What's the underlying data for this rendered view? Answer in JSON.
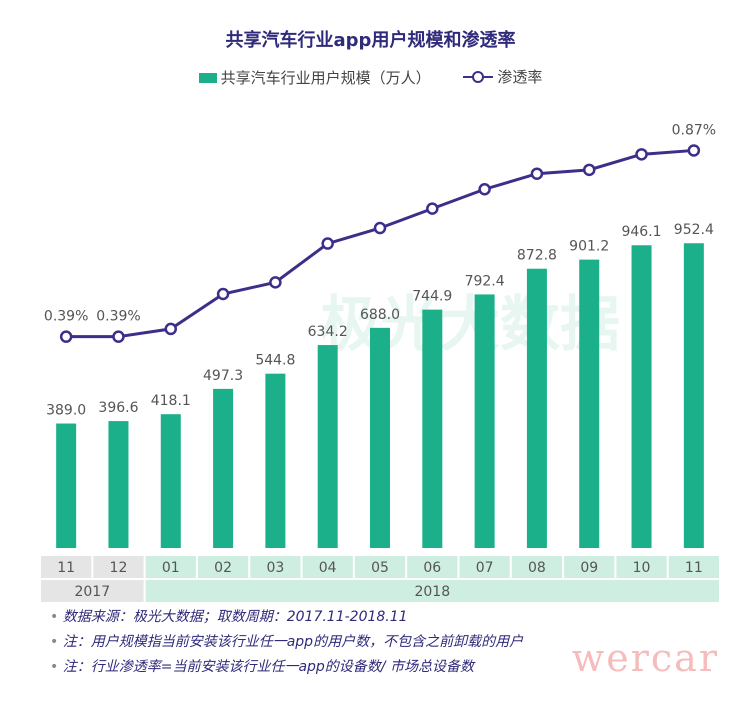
{
  "chart_data": {
    "type": "bar+line",
    "title": "共享汽车行业app用户规模和渗透率",
    "categories": [
      "11",
      "12",
      "01",
      "02",
      "03",
      "04",
      "05",
      "06",
      "07",
      "08",
      "09",
      "10",
      "11"
    ],
    "years": [
      {
        "label": "2017",
        "span": 2
      },
      {
        "label": "2018",
        "span": 11
      }
    ],
    "series": [
      {
        "name": "共享汽车行业用户规模（万人）",
        "type": "bar",
        "values": [
          389.0,
          396.6,
          418.1,
          497.3,
          544.8,
          634.2,
          688.0,
          744.9,
          792.4,
          872.8,
          901.2,
          946.1,
          952.4
        ],
        "labels": [
          "389.0",
          "396.6",
          "418.1",
          "497.3",
          "544.8",
          "634.2",
          "688.0",
          "744.9",
          "792.4",
          "872.8",
          "901.2",
          "946.1",
          "952.4"
        ]
      },
      {
        "name": "渗透率",
        "type": "line",
        "values": [
          0.39,
          0.39,
          0.41,
          0.5,
          0.53,
          0.63,
          0.67,
          0.72,
          0.77,
          0.81,
          0.82,
          0.86,
          0.87
        ],
        "labels": [
          "0.39%",
          "0.39%",
          "",
          "",
          "",
          "",
          "",
          "",
          "",
          "",
          "",
          "",
          "0.87%"
        ]
      }
    ],
    "bar_ylim": [
      0,
      1000
    ],
    "line_ylim": [
      0,
      1.0
    ],
    "grid": false,
    "legend_position": "top-center"
  },
  "colors": {
    "bar": "#1bb08a",
    "line": "#3b2f8a",
    "title": "#2f2a7a",
    "axis_band_2017": "#e5e5e5",
    "axis_band_2018": "#cfeee2"
  },
  "notes": [
    "数据来源：极光大数据；取数周期：2017.11-2018.11",
    "注：用户规模指当前安装该行业任一app的用户数，不包含之前卸载的用户",
    "注：行业渗透率=当前安装该行业任一app的设备数/ 市场总设备数"
  ],
  "watermarks": {
    "center_text": "极光大数据",
    "corner_text": "wercar"
  }
}
